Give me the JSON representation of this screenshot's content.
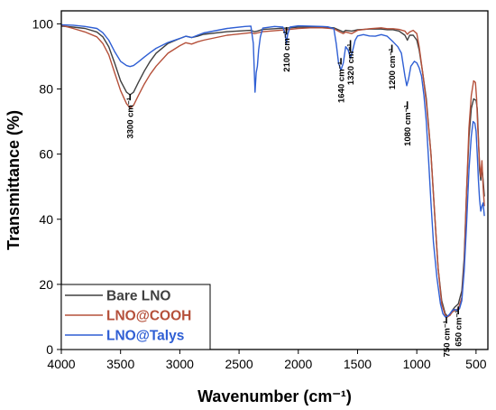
{
  "chart_data": {
    "type": "line",
    "xlabel": "Wavenumber (cm⁻¹)",
    "ylabel": "Transmittance (%)",
    "xlim": [
      4000,
      400
    ],
    "ylim": [
      0,
      104
    ],
    "x_reversed": true,
    "xticks": [
      4000,
      3500,
      3000,
      2500,
      2000,
      1500,
      1000,
      500
    ],
    "yticks": [
      0,
      20,
      40,
      60,
      80,
      100
    ],
    "grid": false,
    "legend_position": "bottom-left",
    "series": [
      {
        "name": "Bare LNO",
        "color": "#404040",
        "points": [
          [
            4000,
            99.3
          ],
          [
            3900,
            99
          ],
          [
            3800,
            98.6
          ],
          [
            3700,
            97.5
          ],
          [
            3650,
            96
          ],
          [
            3600,
            93
          ],
          [
            3550,
            88
          ],
          [
            3500,
            82.5
          ],
          [
            3450,
            79
          ],
          [
            3420,
            78.2
          ],
          [
            3390,
            79
          ],
          [
            3350,
            82
          ],
          [
            3300,
            85.5
          ],
          [
            3250,
            88.5
          ],
          [
            3200,
            91
          ],
          [
            3100,
            94
          ],
          [
            3000,
            95.5
          ],
          [
            2950,
            96.2
          ],
          [
            2900,
            95.8
          ],
          [
            2850,
            96.2
          ],
          [
            2800,
            96.8
          ],
          [
            2600,
            97.6
          ],
          [
            2400,
            98
          ],
          [
            2370,
            97.6
          ],
          [
            2345,
            97.8
          ],
          [
            2300,
            98.3
          ],
          [
            2100,
            98.7
          ],
          [
            2000,
            99
          ],
          [
            1900,
            99
          ],
          [
            1800,
            99
          ],
          [
            1700,
            98.8
          ],
          [
            1650,
            98
          ],
          [
            1620,
            97.5
          ],
          [
            1600,
            98
          ],
          [
            1550,
            97.8
          ],
          [
            1500,
            98.2
          ],
          [
            1400,
            98.4
          ],
          [
            1300,
            98.4
          ],
          [
            1250,
            98.2
          ],
          [
            1200,
            98.2
          ],
          [
            1150,
            97.8
          ],
          [
            1100,
            96.5
          ],
          [
            1080,
            95
          ],
          [
            1060,
            96.5
          ],
          [
            1030,
            96.5
          ],
          [
            1000,
            95
          ],
          [
            980,
            92
          ],
          [
            950,
            85
          ],
          [
            920,
            77
          ],
          [
            880,
            60
          ],
          [
            850,
            42
          ],
          [
            820,
            25
          ],
          [
            790,
            15
          ],
          [
            760,
            11
          ],
          [
            740,
            10.2
          ],
          [
            720,
            10.5
          ],
          [
            700,
            12
          ],
          [
            680,
            13
          ],
          [
            650,
            14
          ],
          [
            620,
            18
          ],
          [
            600,
            28
          ],
          [
            580,
            48
          ],
          [
            560,
            65
          ],
          [
            540,
            74
          ],
          [
            520,
            77
          ],
          [
            500,
            76.5
          ],
          [
            490,
            74
          ],
          [
            480,
            65
          ],
          [
            470,
            55
          ],
          [
            460,
            52
          ],
          [
            450,
            56
          ],
          [
            440,
            52
          ],
          [
            430,
            47
          ]
        ]
      },
      {
        "name": "LNO@COOH",
        "color": "#b5503a",
        "points": [
          [
            4000,
            99.6
          ],
          [
            3900,
            98.6
          ],
          [
            3800,
            97.5
          ],
          [
            3700,
            96
          ],
          [
            3650,
            94
          ],
          [
            3600,
            90.5
          ],
          [
            3550,
            85
          ],
          [
            3500,
            79.5
          ],
          [
            3450,
            75.5
          ],
          [
            3420,
            74.2
          ],
          [
            3390,
            75
          ],
          [
            3350,
            78
          ],
          [
            3300,
            81.5
          ],
          [
            3250,
            84.5
          ],
          [
            3200,
            87
          ],
          [
            3100,
            91
          ],
          [
            3000,
            93.3
          ],
          [
            2950,
            94.2
          ],
          [
            2900,
            93.8
          ],
          [
            2850,
            94.5
          ],
          [
            2800,
            95
          ],
          [
            2600,
            96.5
          ],
          [
            2400,
            97.3
          ],
          [
            2370,
            97
          ],
          [
            2345,
            97.2
          ],
          [
            2300,
            97.6
          ],
          [
            2100,
            98.2
          ],
          [
            2000,
            98.6
          ],
          [
            1900,
            98.8
          ],
          [
            1800,
            98.8
          ],
          [
            1700,
            98.5
          ],
          [
            1650,
            97.5
          ],
          [
            1620,
            97
          ],
          [
            1600,
            97.5
          ],
          [
            1550,
            97
          ],
          [
            1500,
            98
          ],
          [
            1400,
            98.5
          ],
          [
            1300,
            98.8
          ],
          [
            1250,
            98.5
          ],
          [
            1200,
            98.5
          ],
          [
            1150,
            98.3
          ],
          [
            1100,
            97.8
          ],
          [
            1080,
            96.8
          ],
          [
            1060,
            97.5
          ],
          [
            1030,
            98
          ],
          [
            1000,
            97
          ],
          [
            980,
            93
          ],
          [
            950,
            85
          ],
          [
            920,
            76
          ],
          [
            880,
            60
          ],
          [
            850,
            42
          ],
          [
            820,
            25
          ],
          [
            790,
            14
          ],
          [
            760,
            10.5
          ],
          [
            740,
            10
          ],
          [
            720,
            10.5
          ],
          [
            700,
            11.5
          ],
          [
            680,
            12
          ],
          [
            650,
            12.5
          ],
          [
            620,
            16
          ],
          [
            600,
            26
          ],
          [
            580,
            48
          ],
          [
            560,
            68
          ],
          [
            540,
            78
          ],
          [
            520,
            82.5
          ],
          [
            505,
            82
          ],
          [
            495,
            77
          ],
          [
            485,
            68
          ],
          [
            470,
            57
          ],
          [
            460,
            53
          ],
          [
            450,
            58
          ],
          [
            440,
            50
          ],
          [
            430,
            44
          ]
        ]
      },
      {
        "name": "LNO@Talys",
        "color": "#2f5fd4",
        "points": [
          [
            4000,
            99.7
          ],
          [
            3900,
            99.6
          ],
          [
            3800,
            99.2
          ],
          [
            3700,
            98.6
          ],
          [
            3650,
            97.3
          ],
          [
            3600,
            95
          ],
          [
            3550,
            91.5
          ],
          [
            3500,
            88.5
          ],
          [
            3450,
            87.2
          ],
          [
            3420,
            86.9
          ],
          [
            3390,
            87.2
          ],
          [
            3350,
            88.3
          ],
          [
            3300,
            89.8
          ],
          [
            3250,
            91.2
          ],
          [
            3200,
            92.5
          ],
          [
            3100,
            94.3
          ],
          [
            3000,
            95.5
          ],
          [
            2950,
            96.2
          ],
          [
            2900,
            95.8
          ],
          [
            2850,
            96.5
          ],
          [
            2800,
            97.2
          ],
          [
            2600,
            98.6
          ],
          [
            2450,
            99.2
          ],
          [
            2400,
            99.3
          ],
          [
            2380,
            94
          ],
          [
            2365,
            79
          ],
          [
            2355,
            85
          ],
          [
            2345,
            87
          ],
          [
            2335,
            92
          ],
          [
            2320,
            96
          ],
          [
            2300,
            98.7
          ],
          [
            2200,
            99.2
          ],
          [
            2130,
            99
          ],
          [
            2110,
            96.8
          ],
          [
            2100,
            94
          ],
          [
            2090,
            96.8
          ],
          [
            2070,
            99
          ],
          [
            2000,
            99.4
          ],
          [
            1900,
            99.3
          ],
          [
            1800,
            99.2
          ],
          [
            1750,
            99.1
          ],
          [
            1700,
            98.5
          ],
          [
            1680,
            94
          ],
          [
            1660,
            88
          ],
          [
            1640,
            85.8
          ],
          [
            1620,
            88
          ],
          [
            1600,
            93
          ],
          [
            1580,
            92
          ],
          [
            1560,
            89.5
          ],
          [
            1540,
            92
          ],
          [
            1520,
            95
          ],
          [
            1500,
            96.3
          ],
          [
            1450,
            96.7
          ],
          [
            1400,
            96.3
          ],
          [
            1350,
            96.2
          ],
          [
            1300,
            96.7
          ],
          [
            1250,
            96.2
          ],
          [
            1200,
            94.5
          ],
          [
            1160,
            93
          ],
          [
            1130,
            91
          ],
          [
            1100,
            84
          ],
          [
            1085,
            81
          ],
          [
            1070,
            83
          ],
          [
            1050,
            87
          ],
          [
            1020,
            88.5
          ],
          [
            1000,
            88
          ],
          [
            980,
            86.5
          ],
          [
            960,
            84
          ],
          [
            940,
            78
          ],
          [
            920,
            70
          ],
          [
            900,
            58
          ],
          [
            880,
            45
          ],
          [
            860,
            33
          ],
          [
            830,
            22
          ],
          [
            800,
            14
          ],
          [
            780,
            11
          ],
          [
            760,
            10
          ],
          [
            740,
            10.2
          ],
          [
            720,
            11
          ],
          [
            700,
            12
          ],
          [
            680,
            12.3
          ],
          [
            660,
            12
          ],
          [
            640,
            12.5
          ],
          [
            620,
            15
          ],
          [
            600,
            24
          ],
          [
            580,
            38
          ],
          [
            560,
            55
          ],
          [
            540,
            65.5
          ],
          [
            525,
            70
          ],
          [
            510,
            69.5
          ],
          [
            500,
            67
          ],
          [
            490,
            60
          ],
          [
            480,
            52
          ],
          [
            470,
            46
          ],
          [
            460,
            42.5
          ],
          [
            450,
            44
          ],
          [
            440,
            45
          ],
          [
            430,
            41
          ]
        ]
      }
    ],
    "annotations": [
      {
        "label": "3300 cm⁻¹",
        "x": 3420,
        "y_top": 76.5,
        "y_bot": 78.5
      },
      {
        "label": "2100 cm⁻¹",
        "x": 2100,
        "y_top": 96.7,
        "y_bot": 99
      },
      {
        "label": "1640 cm⁻¹",
        "x": 1640,
        "y_top": 87.5,
        "y_bot": 89.5
      },
      {
        "label": "1320 cm⁻¹",
        "x": 1560,
        "y_top": 91.5,
        "y_bot": 95
      },
      {
        "label": "1200 cm⁻¹",
        "x": 1210,
        "y_top": 91.2,
        "y_bot": 93.6
      },
      {
        "label": "1080 cm⁻¹",
        "x": 1080,
        "y_top": 73.8,
        "y_bot": 76.2
      },
      {
        "label": "750 cm⁻¹",
        "x": 750,
        "y_top": 8,
        "y_bot": 10
      },
      {
        "label": "650 cm⁻¹",
        "x": 650,
        "y_top": 10.8,
        "y_bot": 13.2
      }
    ]
  }
}
